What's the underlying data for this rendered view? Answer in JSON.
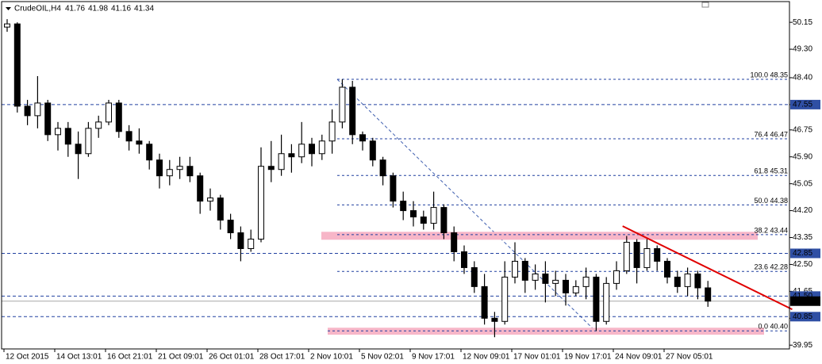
{
  "chart_data": {
    "type": "candlestick",
    "symbol": "CrudeOIL,H4",
    "header_values": [
      41.76,
      41.98,
      41.16,
      41.34
    ],
    "categories": [
      "12 Oct 2015",
      null,
      null,
      null,
      null,
      "14 Oct 13:01",
      null,
      null,
      null,
      null,
      "16 Oct 21:01",
      null,
      null,
      null,
      null,
      "21 Oct 09:01",
      null,
      null,
      null,
      null,
      "26 Oct 01:01",
      null,
      null,
      null,
      null,
      "28 Oct 17:01",
      null,
      null,
      null,
      null,
      "2 Nov 10:01",
      null,
      null,
      null,
      null,
      "5 Nov 02:01",
      null,
      null,
      null,
      null,
      "9 Nov 17:01",
      null,
      null,
      null,
      null,
      "12 Nov 09:01",
      null,
      null,
      null,
      null,
      "17 Nov 01:01",
      null,
      null,
      null,
      null,
      "19 Nov 17:01",
      null,
      null,
      null,
      null,
      "24 Nov 09:01",
      null,
      null,
      null,
      null,
      "27 Nov 05:01",
      null,
      null,
      null,
      null
    ],
    "open": [
      50.0,
      50.1,
      47.5,
      47.2,
      47.6,
      46.6,
      46.8,
      46.3,
      46.0,
      46.8,
      47.0,
      47.6,
      46.7,
      46.4,
      46.3,
      45.8,
      45.3,
      45.5,
      45.6,
      45.3,
      44.5,
      44.6,
      43.9,
      43.5,
      43.0,
      43.3,
      45.6,
      45.5,
      46.0,
      45.9,
      46.3,
      46.0,
      46.4,
      47.0,
      48.1,
      46.6,
      46.4,
      45.8,
      45.3,
      44.5,
      44.2,
      44.0,
      43.8,
      44.3,
      43.5,
      42.9,
      42.4,
      41.8,
      40.8,
      40.7,
      42.1,
      42.6,
      42.0,
      42.2,
      41.9,
      42.0,
      41.6,
      41.8,
      42.1,
      40.7,
      41.9,
      42.3,
      43.2,
      42.4,
      43.0,
      42.6,
      42.1,
      41.8,
      42.2,
      41.76
    ],
    "high": [
      50.25,
      50.15,
      47.7,
      48.45,
      47.7,
      47.0,
      47.0,
      46.7,
      47.0,
      47.2,
      47.7,
      47.7,
      46.9,
      46.8,
      46.4,
      46.0,
      45.8,
      45.9,
      45.9,
      45.4,
      44.9,
      44.7,
      44.1,
      43.7,
      43.6,
      46.2,
      46.4,
      46.6,
      46.3,
      47.0,
      46.5,
      46.6,
      47.4,
      48.35,
      48.3,
      46.7,
      46.5,
      45.9,
      45.4,
      44.8,
      44.5,
      44.2,
      44.8,
      44.4,
      43.7,
      43.1,
      42.6,
      42.2,
      41.0,
      42.6,
      43.2,
      42.7,
      42.5,
      42.6,
      42.3,
      42.2,
      42.0,
      42.4,
      42.2,
      42.1,
      42.6,
      43.4,
      43.3,
      43.3,
      43.1,
      42.7,
      42.3,
      42.4,
      42.3,
      41.98
    ],
    "low": [
      49.85,
      47.3,
      46.9,
      46.8,
      46.4,
      46.1,
      45.9,
      45.2,
      45.9,
      46.5,
      46.9,
      46.5,
      46.1,
      46.0,
      45.5,
      44.9,
      45.0,
      45.2,
      45.1,
      44.1,
      44.2,
      43.6,
      43.3,
      42.6,
      42.9,
      43.2,
      45.1,
      45.3,
      45.4,
      45.7,
      45.6,
      45.8,
      46.0,
      46.8,
      46.3,
      46.1,
      45.6,
      45.0,
      44.3,
      43.9,
      43.7,
      43.6,
      43.6,
      43.3,
      42.6,
      42.2,
      41.6,
      40.6,
      40.2,
      40.6,
      41.9,
      41.6,
      41.7,
      41.3,
      41.5,
      41.2,
      41.5,
      41.4,
      40.4,
      40.6,
      41.7,
      42.2,
      41.9,
      42.3,
      42.3,
      41.9,
      41.6,
      41.5,
      41.4,
      41.16
    ],
    "close": [
      50.1,
      47.5,
      47.2,
      47.6,
      46.6,
      46.8,
      46.3,
      46.0,
      46.8,
      47.0,
      47.6,
      46.7,
      46.4,
      46.3,
      45.8,
      45.3,
      45.5,
      45.6,
      45.3,
      44.5,
      44.6,
      43.9,
      43.5,
      43.0,
      43.3,
      45.6,
      45.5,
      46.0,
      45.9,
      46.3,
      46.0,
      46.4,
      47.0,
      48.1,
      46.6,
      46.4,
      45.8,
      45.3,
      44.5,
      44.2,
      44.0,
      43.8,
      44.3,
      43.5,
      42.9,
      42.4,
      41.8,
      40.8,
      40.7,
      42.1,
      42.6,
      42.0,
      42.2,
      41.9,
      42.0,
      41.6,
      41.8,
      42.1,
      40.7,
      41.9,
      42.3,
      43.2,
      42.4,
      43.0,
      42.6,
      42.1,
      41.8,
      42.2,
      41.76,
      41.34
    ],
    "ylim": [
      39.83,
      50.78
    ],
    "yticks": [
      50.15,
      {
        "value": 49.3,
        "label": "49.30"
      },
      {
        "value": 48.4,
        "label": "48.40"
      },
      47.55,
      46.75,
      {
        "value": 45.9,
        "label": "45.90"
      },
      45.05,
      {
        "value": 44.2,
        "label": "44.20"
      },
      43.35,
      {
        "value": 42.5,
        "label": "42.50"
      },
      41.65,
      {
        "value": 40.8,
        "label": "40.80"
      },
      39.95
    ],
    "levels": [
      47.55,
      42.85,
      {
        "value": 41.5,
        "label": "41.50"
      },
      40.85
    ],
    "last_price": 41.34,
    "fibonacci": [
      {
        "label": "100.0 48.35",
        "value": 48.35
      },
      {
        "label": "76.4 46.47",
        "value": 46.47
      },
      {
        "label": "61.8 45.31",
        "value": 45.31
      },
      {
        "label": "50.0 44.38",
        "value": 44.38
      },
      {
        "label": "38.2 43.44",
        "value": 43.44
      },
      {
        "label": "23.6 42.28",
        "value": 42.28
      },
      {
        "label": "0.0 40.40",
        "value": 40.4
      }
    ],
    "zones": [
      [
        43.28,
        43.53
      ],
      [
        40.28,
        40.5
      ]
    ],
    "trendline": {
      "x": [
        60.6,
        77.3
      ],
      "values": [
        43.71,
        41.08
      ],
      "color": "#e00000"
    }
  }
}
